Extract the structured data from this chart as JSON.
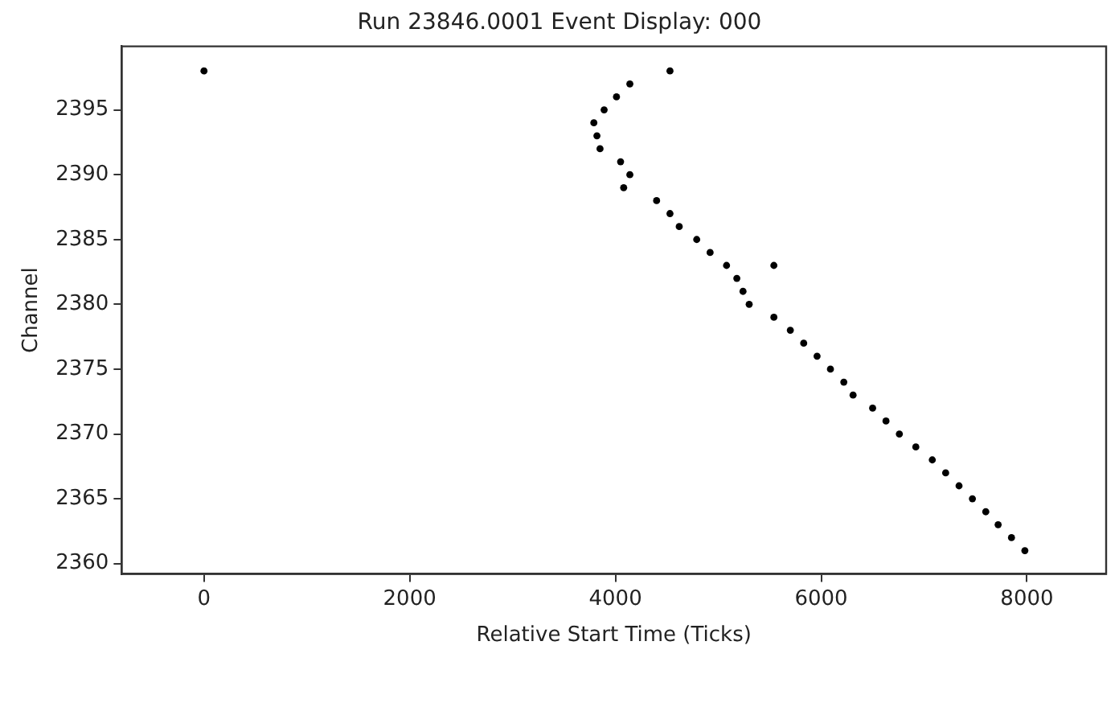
{
  "chart_data": {
    "type": "scatter",
    "title": "Run 23846.0001 Event Display: 000",
    "xlabel": "Relative Start Time (Ticks)",
    "ylabel": "Channel",
    "x": [
      0,
      4530,
      4140,
      4010,
      3890,
      3790,
      3820,
      3850,
      4050,
      4140,
      4080,
      4400,
      4530,
      4620,
      4790,
      4920,
      5080,
      5540,
      5180,
      5240,
      5300,
      5540,
      5700,
      5830,
      5960,
      6090,
      6220,
      6310,
      6500,
      6630,
      6760,
      6920,
      7080,
      7210,
      7340,
      7470,
      7600,
      7720,
      7850,
      7980
    ],
    "series": [
      {
        "color": "#000000",
        "values": [
          2398,
          2398,
          2397,
          2396,
          2395,
          2394,
          2393,
          2392,
          2391,
          2390,
          2389,
          2388,
          2387,
          2386,
          2385,
          2384,
          2383,
          2383,
          2382,
          2381,
          2380,
          2379,
          2378,
          2377,
          2376,
          2375,
          2374,
          2373,
          2372,
          2371,
          2370,
          2369,
          2368,
          2367,
          2366,
          2365,
          2364,
          2363,
          2362,
          2361
        ]
      }
    ],
    "xlim": [
      -800,
      8770
    ],
    "ylim": [
      2359.2,
      2399.9
    ],
    "xticks": [
      0,
      2000,
      4000,
      6000,
      8000
    ],
    "yticks": [
      2360,
      2365,
      2370,
      2375,
      2380,
      2385,
      2390,
      2395
    ],
    "grid": false,
    "legend": false,
    "marker": "circle"
  }
}
